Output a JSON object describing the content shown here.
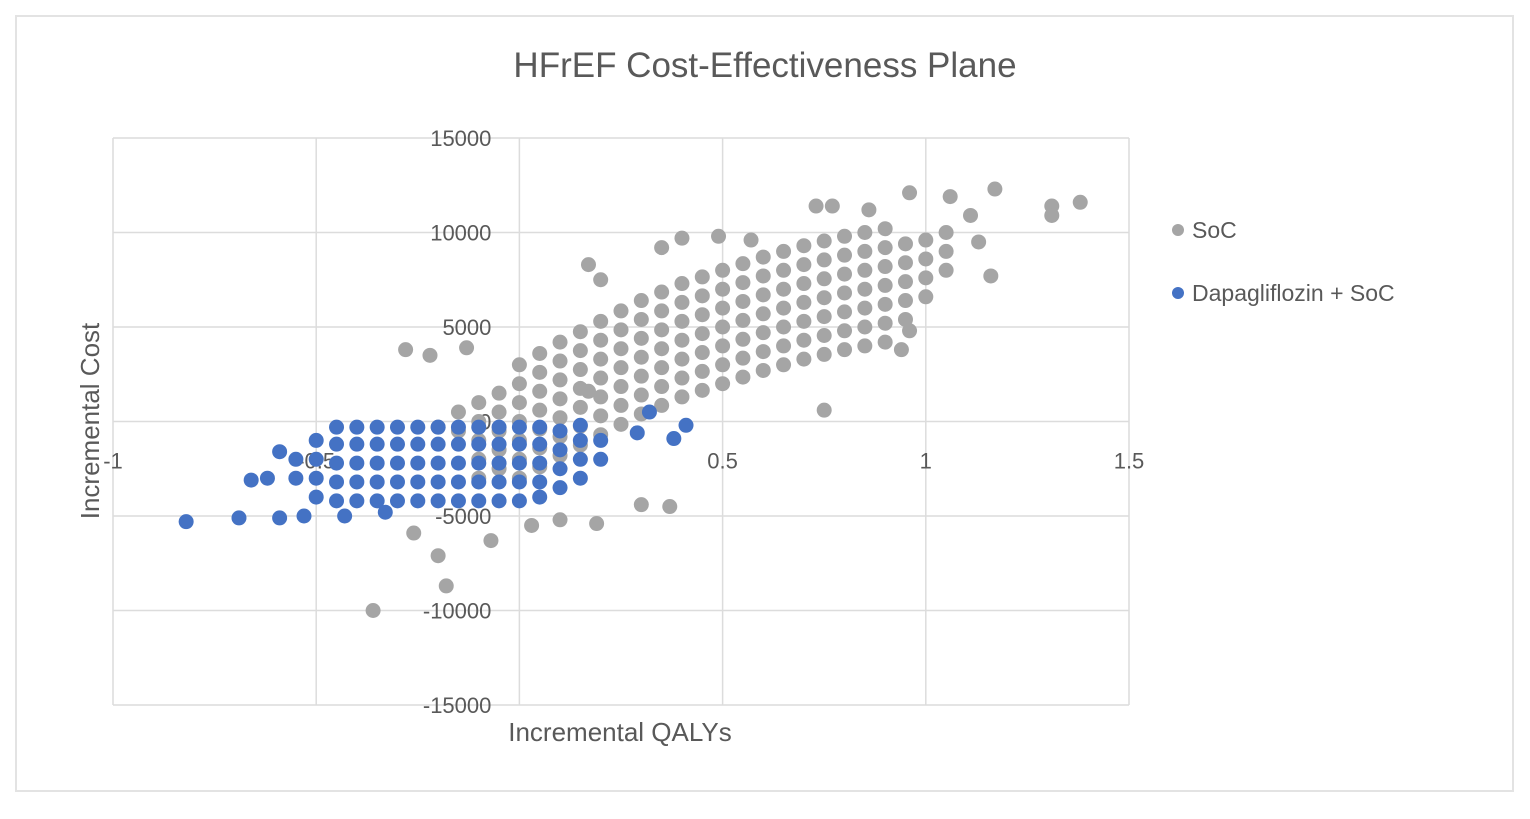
{
  "chart_data": {
    "type": "scatter",
    "title": "HFrEF Cost-Effectiveness Plane",
    "xlabel": "Incremental QALYs",
    "ylabel": "Incremental Cost",
    "xlim": [
      -1,
      1.5
    ],
    "ylim": [
      -15000,
      15000
    ],
    "xticks": [
      "-1",
      "-0.5",
      "0",
      "0.5",
      "1",
      "1.5"
    ],
    "yticks": [
      "-15000",
      "-10000",
      "-5000",
      "0",
      "5000",
      "10000",
      "15000"
    ],
    "grid": true,
    "legend_position": "right",
    "series": [
      {
        "name": "SoC",
        "color": "#a5a5a5",
        "points": [
          [
            0,
            -3000
          ],
          [
            0,
            -2000
          ],
          [
            0,
            -1000
          ],
          [
            0,
            0
          ],
          [
            0,
            1000
          ],
          [
            0,
            2000
          ],
          [
            0,
            3000
          ],
          [
            0.05,
            -2400
          ],
          [
            0.05,
            -1400
          ],
          [
            0.05,
            -400
          ],
          [
            0.05,
            600
          ],
          [
            0.05,
            1600
          ],
          [
            0.05,
            2600
          ],
          [
            0.05,
            3600
          ],
          [
            0.1,
            -1800
          ],
          [
            0.1,
            -800
          ],
          [
            0.1,
            200
          ],
          [
            0.1,
            1200
          ],
          [
            0.1,
            2200
          ],
          [
            0.1,
            3200
          ],
          [
            0.1,
            4200
          ],
          [
            0.15,
            -1250
          ],
          [
            0.15,
            -250
          ],
          [
            0.15,
            750
          ],
          [
            0.15,
            1750
          ],
          [
            0.15,
            2750
          ],
          [
            0.15,
            3750
          ],
          [
            0.15,
            4750
          ],
          [
            0.2,
            -700
          ],
          [
            0.2,
            300
          ],
          [
            0.2,
            1300
          ],
          [
            0.2,
            2300
          ],
          [
            0.2,
            3300
          ],
          [
            0.2,
            4300
          ],
          [
            0.2,
            5300
          ],
          [
            0.25,
            -150
          ],
          [
            0.25,
            850
          ],
          [
            0.25,
            1850
          ],
          [
            0.25,
            2850
          ],
          [
            0.25,
            3850
          ],
          [
            0.25,
            4850
          ],
          [
            0.25,
            5850
          ],
          [
            0.3,
            400
          ],
          [
            0.3,
            1400
          ],
          [
            0.3,
            2400
          ],
          [
            0.3,
            3400
          ],
          [
            0.3,
            4400
          ],
          [
            0.3,
            5400
          ],
          [
            0.3,
            6400
          ],
          [
            0.35,
            850
          ],
          [
            0.35,
            1850
          ],
          [
            0.35,
            2850
          ],
          [
            0.35,
            3850
          ],
          [
            0.35,
            4850
          ],
          [
            0.35,
            5850
          ],
          [
            0.35,
            6850
          ],
          [
            0.4,
            1300
          ],
          [
            0.4,
            2300
          ],
          [
            0.4,
            3300
          ],
          [
            0.4,
            4300
          ],
          [
            0.4,
            5300
          ],
          [
            0.4,
            6300
          ],
          [
            0.4,
            7300
          ],
          [
            0.45,
            1650
          ],
          [
            0.45,
            2650
          ],
          [
            0.45,
            3650
          ],
          [
            0.45,
            4650
          ],
          [
            0.45,
            5650
          ],
          [
            0.45,
            6650
          ],
          [
            0.45,
            7650
          ],
          [
            0.5,
            2000
          ],
          [
            0.5,
            3000
          ],
          [
            0.5,
            4000
          ],
          [
            0.5,
            5000
          ],
          [
            0.5,
            6000
          ],
          [
            0.5,
            7000
          ],
          [
            0.5,
            8000
          ],
          [
            0.55,
            2350
          ],
          [
            0.55,
            3350
          ],
          [
            0.55,
            4350
          ],
          [
            0.55,
            5350
          ],
          [
            0.55,
            6350
          ],
          [
            0.55,
            7350
          ],
          [
            0.55,
            8350
          ],
          [
            0.6,
            2700
          ],
          [
            0.6,
            3700
          ],
          [
            0.6,
            4700
          ],
          [
            0.6,
            5700
          ],
          [
            0.6,
            6700
          ],
          [
            0.6,
            7700
          ],
          [
            0.6,
            8700
          ],
          [
            0.65,
            3000
          ],
          [
            0.65,
            4000
          ],
          [
            0.65,
            5000
          ],
          [
            0.65,
            6000
          ],
          [
            0.65,
            7000
          ],
          [
            0.65,
            8000
          ],
          [
            0.65,
            9000
          ],
          [
            0.7,
            3300
          ],
          [
            0.7,
            4300
          ],
          [
            0.7,
            5300
          ],
          [
            0.7,
            6300
          ],
          [
            0.7,
            7300
          ],
          [
            0.7,
            8300
          ],
          [
            0.7,
            9300
          ],
          [
            0.75,
            3550
          ],
          [
            0.75,
            4550
          ],
          [
            0.75,
            5550
          ],
          [
            0.75,
            6550
          ],
          [
            0.75,
            7550
          ],
          [
            0.75,
            8550
          ],
          [
            0.75,
            9550
          ],
          [
            0.8,
            3800
          ],
          [
            0.8,
            4800
          ],
          [
            0.8,
            5800
          ],
          [
            0.8,
            6800
          ],
          [
            0.8,
            7800
          ],
          [
            0.8,
            8800
          ],
          [
            0.8,
            9800
          ],
          [
            0.85,
            4000
          ],
          [
            0.85,
            5000
          ],
          [
            0.85,
            6000
          ],
          [
            0.85,
            7000
          ],
          [
            0.85,
            8000
          ],
          [
            0.85,
            9000
          ],
          [
            0.85,
            10000
          ],
          [
            0.9,
            4200
          ],
          [
            0.9,
            5200
          ],
          [
            0.9,
            6200
          ],
          [
            0.9,
            7200
          ],
          [
            0.9,
            8200
          ],
          [
            0.9,
            9200
          ],
          [
            0.9,
            10200
          ],
          [
            0.95,
            5400
          ],
          [
            0.95,
            6400
          ],
          [
            0.95,
            7400
          ],
          [
            0.95,
            8400
          ],
          [
            0.95,
            9400
          ],
          [
            1.0,
            6600
          ],
          [
            1.0,
            7600
          ],
          [
            1.0,
            8600
          ],
          [
            1.0,
            9600
          ],
          [
            1.05,
            8000
          ],
          [
            1.05,
            9000
          ],
          [
            1.05,
            10000
          ],
          [
            -0.05,
            -2500
          ],
          [
            -0.05,
            -1500
          ],
          [
            -0.05,
            -500
          ],
          [
            -0.05,
            500
          ],
          [
            -0.05,
            1500
          ],
          [
            -0.1,
            -3000
          ],
          [
            -0.1,
            -2000
          ],
          [
            -0.1,
            -1000
          ],
          [
            -0.1,
            0
          ],
          [
            -0.1,
            1000
          ],
          [
            -0.15,
            -500
          ],
          [
            -0.15,
            500
          ],
          [
            -0.2,
            -300
          ],
          [
            -0.28,
            3800
          ],
          [
            -0.22,
            3500
          ],
          [
            -0.13,
            3900
          ],
          [
            -0.26,
            -5900
          ],
          [
            -0.2,
            -7100
          ],
          [
            -0.18,
            -8700
          ],
          [
            -0.36,
            -10000
          ],
          [
            -0.07,
            -6300
          ],
          [
            0.19,
            -5400
          ],
          [
            0.3,
            -4400
          ],
          [
            0.37,
            -4500
          ],
          [
            0.03,
            -5500
          ],
          [
            0.1,
            -5200
          ],
          [
            0.75,
            600
          ],
          [
            1.16,
            7700
          ],
          [
            1.38,
            11600
          ],
          [
            1.31,
            11400
          ],
          [
            1.31,
            10900
          ],
          [
            1.17,
            12300
          ],
          [
            1.06,
            11900
          ],
          [
            0.96,
            12100
          ],
          [
            1.11,
            10900
          ],
          [
            1.13,
            9500
          ],
          [
            0.94,
            3800
          ],
          [
            0.96,
            4800
          ],
          [
            0.17,
            8300
          ],
          [
            0.2,
            7500
          ],
          [
            0.35,
            9200
          ],
          [
            0.4,
            9700
          ],
          [
            0.17,
            1600
          ],
          [
            0.73,
            11400
          ],
          [
            0.77,
            11400
          ],
          [
            0.86,
            11200
          ],
          [
            0.49,
            9800
          ],
          [
            0.57,
            9600
          ]
        ]
      },
      {
        "name": "Dapagliflozin + SoC",
        "color": "#4472c4",
        "points": [
          [
            -0.55,
            -3000
          ],
          [
            -0.55,
            -2000
          ],
          [
            -0.5,
            -4000
          ],
          [
            -0.5,
            -3000
          ],
          [
            -0.5,
            -2000
          ],
          [
            -0.5,
            -1000
          ],
          [
            -0.45,
            -4200
          ],
          [
            -0.45,
            -3200
          ],
          [
            -0.45,
            -2200
          ],
          [
            -0.45,
            -1200
          ],
          [
            -0.45,
            -300
          ],
          [
            -0.4,
            -4200
          ],
          [
            -0.4,
            -3200
          ],
          [
            -0.4,
            -2200
          ],
          [
            -0.4,
            -1200
          ],
          [
            -0.4,
            -300
          ],
          [
            -0.35,
            -4200
          ],
          [
            -0.35,
            -3200
          ],
          [
            -0.35,
            -2200
          ],
          [
            -0.35,
            -1200
          ],
          [
            -0.35,
            -300
          ],
          [
            -0.3,
            -4200
          ],
          [
            -0.3,
            -3200
          ],
          [
            -0.3,
            -2200
          ],
          [
            -0.3,
            -1200
          ],
          [
            -0.3,
            -300
          ],
          [
            -0.25,
            -4200
          ],
          [
            -0.25,
            -3200
          ],
          [
            -0.25,
            -2200
          ],
          [
            -0.25,
            -1200
          ],
          [
            -0.25,
            -300
          ],
          [
            -0.2,
            -4200
          ],
          [
            -0.2,
            -3200
          ],
          [
            -0.2,
            -2200
          ],
          [
            -0.2,
            -1200
          ],
          [
            -0.2,
            -300
          ],
          [
            -0.15,
            -4200
          ],
          [
            -0.15,
            -3200
          ],
          [
            -0.15,
            -2200
          ],
          [
            -0.15,
            -1200
          ],
          [
            -0.15,
            -300
          ],
          [
            -0.1,
            -4200
          ],
          [
            -0.1,
            -3200
          ],
          [
            -0.1,
            -2200
          ],
          [
            -0.1,
            -1200
          ],
          [
            -0.1,
            -300
          ],
          [
            -0.05,
            -4200
          ],
          [
            -0.05,
            -3200
          ],
          [
            -0.05,
            -2200
          ],
          [
            -0.05,
            -1200
          ],
          [
            -0.05,
            -300
          ],
          [
            0,
            -4200
          ],
          [
            0,
            -3200
          ],
          [
            0,
            -2200
          ],
          [
            0,
            -1200
          ],
          [
            0,
            -300
          ],
          [
            0.05,
            -4000
          ],
          [
            0.05,
            -3200
          ],
          [
            0.05,
            -2200
          ],
          [
            0.05,
            -1200
          ],
          [
            0.05,
            -300
          ],
          [
            0.1,
            -3500
          ],
          [
            0.1,
            -2500
          ],
          [
            0.1,
            -1500
          ],
          [
            0.1,
            -500
          ],
          [
            0.15,
            -3000
          ],
          [
            0.15,
            -2000
          ],
          [
            0.15,
            -1000
          ],
          [
            0.15,
            -200
          ],
          [
            0.2,
            -2000
          ],
          [
            0.2,
            -1000
          ],
          [
            -0.82,
            -5300
          ],
          [
            -0.69,
            -5100
          ],
          [
            -0.59,
            -5100
          ],
          [
            -0.66,
            -3100
          ],
          [
            -0.62,
            -3000
          ],
          [
            -0.59,
            -1600
          ],
          [
            -0.53,
            -5000
          ],
          [
            0.32,
            500
          ],
          [
            0.41,
            -200
          ],
          [
            0.38,
            -900
          ],
          [
            0.29,
            -600
          ],
          [
            -0.43,
            -5000
          ],
          [
            -0.33,
            -4800
          ]
        ]
      }
    ]
  }
}
